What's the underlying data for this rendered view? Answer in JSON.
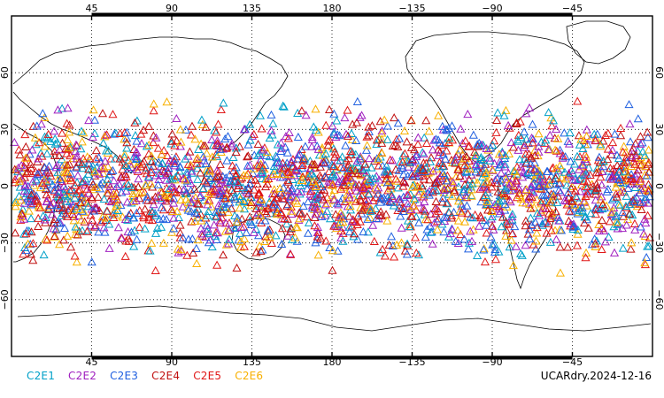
{
  "map": {
    "top_lon_labels": [
      "45",
      "90",
      "135",
      "180",
      "−135",
      "−90",
      "−45"
    ],
    "bottom_lon_labels": [
      "45",
      "90",
      "135",
      "180",
      "−135",
      "−90",
      "−45"
    ],
    "lat_labels": [
      "60",
      "30",
      "0",
      "−30",
      "−60"
    ],
    "point_latitude_band": [
      -50,
      50
    ]
  },
  "legend": [
    {
      "label": "C2E1",
      "color": "#00a0c8"
    },
    {
      "label": "C2E2",
      "color": "#a020c0"
    },
    {
      "label": "C2E3",
      "color": "#2060e0"
    },
    {
      "label": "C2E4",
      "color": "#c01010"
    },
    {
      "label": "C2E5",
      "color": "#e01818"
    },
    {
      "label": "C2E6",
      "color": "#f8b000"
    }
  ],
  "caption": "UCARdry.2024-12-16"
}
